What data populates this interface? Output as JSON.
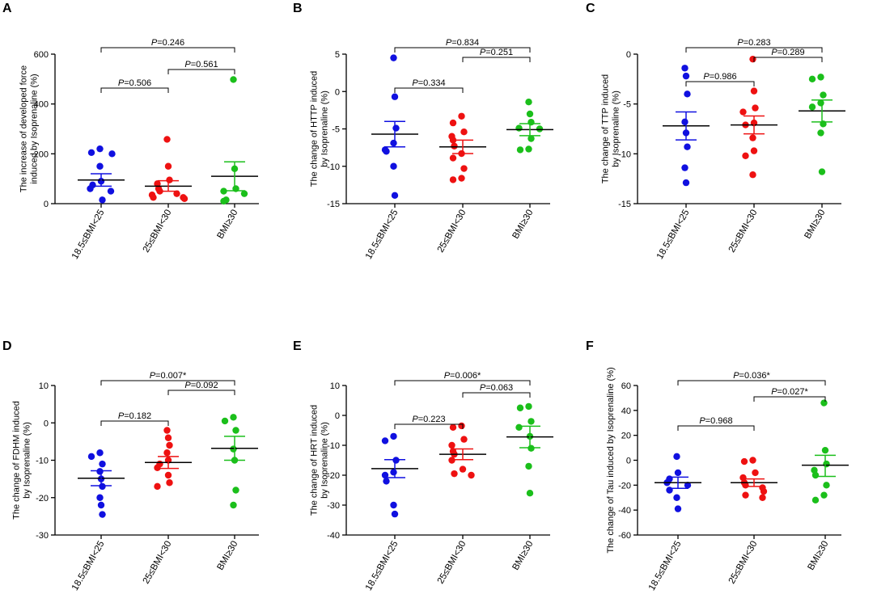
{
  "figure": {
    "group_colors": [
      "#1010e0",
      "#ee1111",
      "#1bbf1b"
    ],
    "p_prefix": "P"
  },
  "chart_data": [
    {
      "panel": "A",
      "type": "scatter",
      "ylabel": "The increase of developed force\ninduced by Isoprenaline (%)",
      "ylim": [
        0,
        600
      ],
      "yticks": [
        0,
        200,
        400,
        600
      ],
      "categories": [
        "18.5≤BMI<25",
        "25≤BMI<30",
        "BMI≥30"
      ],
      "series": [
        {
          "name": "18.5≤BMI<25",
          "values": [
            220,
            205,
            200,
            150,
            90,
            75,
            60,
            50,
            15
          ],
          "mean": 95,
          "sem_low": 70,
          "sem_high": 120
        },
        {
          "name": "25≤BMI<30",
          "values": [
            258,
            150,
            95,
            80,
            60,
            50,
            40,
            35,
            25,
            25,
            20
          ],
          "mean": 70,
          "sem_low": 50,
          "sem_high": 92
        },
        {
          "name": "BMI≥30",
          "values": [
            498,
            140,
            60,
            50,
            40,
            15,
            10
          ],
          "mean": 110,
          "sem_low": 52,
          "sem_high": 168
        }
      ],
      "comparisons": [
        {
          "from": 0,
          "to": 1,
          "label": "=0.506"
        },
        {
          "from": 1,
          "to": 2,
          "label": "=0.561"
        },
        {
          "from": 0,
          "to": 2,
          "label": "=0.246"
        }
      ]
    },
    {
      "panel": "B",
      "type": "scatter",
      "ylabel": "The change of HTTP induced\nby Isoprenaline (%)",
      "ylim": [
        -15,
        5
      ],
      "yticks": [
        -15,
        -10,
        -5,
        0,
        5
      ],
      "categories": [
        "18.5≤BMI<25",
        "25≤BMI<30",
        "BMI≥30"
      ],
      "series": [
        {
          "name": "18.5≤BMI<25",
          "values": [
            4.5,
            -0.7,
            -4.9,
            -6.9,
            -7.8,
            -8.0,
            -10.0,
            -13.9
          ],
          "mean": -5.7,
          "sem_low": -7.4,
          "sem_high": -4.0
        },
        {
          "name": "25≤BMI<30",
          "values": [
            -3.3,
            -4.2,
            -5.4,
            -6.0,
            -6.5,
            -7.3,
            -8.3,
            -8.9,
            -10.3,
            -11.6,
            -11.8
          ],
          "mean": -7.4,
          "sem_low": -8.3,
          "sem_high": -6.5
        },
        {
          "name": "BMI≥30",
          "values": [
            -1.4,
            -3.0,
            -4.1,
            -4.9,
            -5.0,
            -6.3,
            -7.7,
            -7.8
          ],
          "mean": -5.1,
          "sem_low": -5.9,
          "sem_high": -4.3
        }
      ],
      "comparisons": [
        {
          "from": 0,
          "to": 1,
          "label": "=0.334"
        },
        {
          "from": 1,
          "to": 2,
          "label": "=0.251"
        },
        {
          "from": 0,
          "to": 2,
          "label": "=0.834"
        }
      ]
    },
    {
      "panel": "C",
      "type": "scatter",
      "ylabel": "The change of TTP induced\nby Isoprenaline (%)",
      "ylim": [
        -15,
        0
      ],
      "yticks": [
        -15,
        -10,
        -5,
        0
      ],
      "categories": [
        "18.5≤BMI<25",
        "25≤BMI<30",
        "BMI≥30"
      ],
      "series": [
        {
          "name": "18.5≤BMI<25",
          "values": [
            -1.4,
            -2.2,
            -4.0,
            -6.8,
            -7.9,
            -9.3,
            -11.4,
            -12.9
          ],
          "mean": -7.2,
          "sem_low": -8.6,
          "sem_high": -5.8
        },
        {
          "name": "25≤BMI<30",
          "values": [
            -0.5,
            -3.7,
            -5.4,
            -5.8,
            -6.9,
            -7.1,
            -8.4,
            -9.7,
            -10.2,
            -12.1
          ],
          "mean": -7.1,
          "sem_low": -8.0,
          "sem_high": -6.2
        },
        {
          "name": "BMI≥30",
          "values": [
            -2.3,
            -2.5,
            -4.1,
            -4.9,
            -5.3,
            -7.0,
            -7.9,
            -11.8
          ],
          "mean": -5.7,
          "sem_low": -6.8,
          "sem_high": -4.6
        }
      ],
      "comparisons": [
        {
          "from": 0,
          "to": 1,
          "label": "=0.986"
        },
        {
          "from": 1,
          "to": 2,
          "label": "=0.289"
        },
        {
          "from": 0,
          "to": 2,
          "label": "=0.283"
        }
      ]
    },
    {
      "panel": "D",
      "type": "scatter",
      "ylabel": "The change  of FDHM induced\nby Isoprenaline (%)",
      "ylim": [
        -30,
        10
      ],
      "yticks": [
        -30,
        -20,
        -10,
        0,
        10
      ],
      "categories": [
        "18.5≤BMI<25",
        "25≤BMI<30",
        "BMI≥30"
      ],
      "series": [
        {
          "name": "18.5≤BMI<25",
          "values": [
            -8,
            -9,
            -11,
            -13,
            -15,
            -17,
            -20,
            -22,
            -24.5
          ],
          "mean": -14.8,
          "sem_low": -16.8,
          "sem_high": -12.8
        },
        {
          "name": "25≤BMI<30",
          "values": [
            -2,
            -4,
            -6,
            -8,
            -10,
            -11,
            -12,
            -14,
            -16,
            -17
          ],
          "mean": -10.6,
          "sem_low": -12.2,
          "sem_high": -9.0
        },
        {
          "name": "BMI≥30",
          "values": [
            1.5,
            0.5,
            -2,
            -7,
            -10,
            -18,
            -22
          ],
          "mean": -6.8,
          "sem_low": -10.0,
          "sem_high": -3.6
        }
      ],
      "comparisons": [
        {
          "from": 0,
          "to": 1,
          "label": "=0.182"
        },
        {
          "from": 1,
          "to": 2,
          "label": "=0.092"
        },
        {
          "from": 0,
          "to": 2,
          "label": "=0.007*"
        }
      ]
    },
    {
      "panel": "E",
      "type": "scatter",
      "ylabel": "The change of HRT induced\nby Isoprenaline (%)",
      "ylim": [
        -40,
        10
      ],
      "yticks": [
        -40,
        -30,
        -20,
        -10,
        0,
        10
      ],
      "categories": [
        "18.5≤BMI<25",
        "25≤BMI<30",
        "BMI≥30"
      ],
      "series": [
        {
          "name": "18.5≤BMI<25",
          "values": [
            -7,
            -8.5,
            -15,
            -19,
            -20,
            -22,
            -30,
            -33
          ],
          "mean": -17.8,
          "sem_low": -20.8,
          "sem_high": -14.8
        },
        {
          "name": "25≤BMI<30",
          "values": [
            -3.5,
            -4,
            -8,
            -10,
            -12,
            -13,
            -15,
            -18,
            -19.5,
            -20
          ],
          "mean": -13.0,
          "sem_low": -14.8,
          "sem_high": -11.2
        },
        {
          "name": "BMI≥30",
          "values": [
            3,
            2.5,
            -2,
            -4,
            -7,
            -11,
            -17,
            -26
          ],
          "mean": -7.2,
          "sem_low": -10.8,
          "sem_high": -3.6
        }
      ],
      "comparisons": [
        {
          "from": 0,
          "to": 1,
          "label": "=0.223"
        },
        {
          "from": 1,
          "to": 2,
          "label": "=0.063"
        },
        {
          "from": 0,
          "to": 2,
          "label": "=0.006*"
        }
      ]
    },
    {
      "panel": "F",
      "type": "scatter",
      "ylabel": "The change of Tau induced by Isoprenaline (%)",
      "ylim": [
        -60,
        60
      ],
      "yticks": [
        -60,
        -40,
        -20,
        0,
        20,
        40,
        60
      ],
      "categories": [
        "18.5≤BMI<25",
        "25≤BMI<30",
        "BMI≥30"
      ],
      "series": [
        {
          "name": "18.5≤BMI<25",
          "values": [
            3,
            -10,
            -15,
            -18,
            -20,
            -24,
            -30,
            -39
          ],
          "mean": -18.0,
          "sem_low": -22.5,
          "sem_high": -13.5
        },
        {
          "name": "25≤BMI<30",
          "values": [
            0,
            -1,
            -10,
            -14,
            -18,
            -20,
            -22,
            -25,
            -28,
            -30
          ],
          "mean": -18.0,
          "sem_low": -21.0,
          "sem_high": -15.0
        },
        {
          "name": "BMI≥30",
          "values": [
            46,
            8,
            -3,
            -8,
            -12,
            -20,
            -28,
            -32
          ],
          "mean": -4.0,
          "sem_low": -13.0,
          "sem_high": 4.0
        }
      ],
      "comparisons": [
        {
          "from": 0,
          "to": 1,
          "label": "=0.968"
        },
        {
          "from": 1,
          "to": 2,
          "label": "=0.027*"
        },
        {
          "from": 0,
          "to": 2,
          "label": "=0.036*"
        }
      ]
    }
  ]
}
